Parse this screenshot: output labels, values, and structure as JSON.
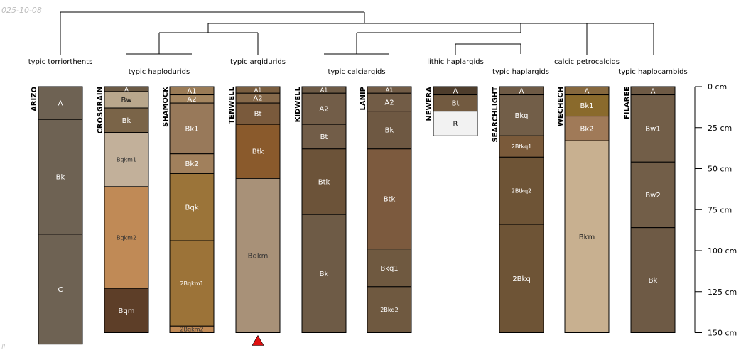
{
  "corner_text": "025-10-08",
  "footer_text": "ll",
  "colors": {
    "line": "#000000",
    "marker": "#e01010",
    "axis": "#000000"
  },
  "axis": {
    "max_depth_cm": 150,
    "ticks": [
      {
        "depth": 0,
        "label": "0 cm"
      },
      {
        "depth": 25,
        "label": "25 cm"
      },
      {
        "depth": 50,
        "label": "50 cm"
      },
      {
        "depth": 75,
        "label": "75 cm"
      },
      {
        "depth": 100,
        "label": "100 cm"
      },
      {
        "depth": 125,
        "label": "125 cm"
      },
      {
        "depth": 150,
        "label": "150 cm"
      }
    ]
  },
  "taxa": [
    {
      "label": "typic torriorthents",
      "profiles": [
        0
      ]
    },
    {
      "label": "typic haplodurids",
      "profiles": [
        1,
        2
      ]
    },
    {
      "label": "typic argidurids",
      "profiles": [
        3
      ]
    },
    {
      "label": "typic calciargids",
      "profiles": [
        4,
        5
      ]
    },
    {
      "label": "lithic haplargids",
      "profiles": [
        6
      ]
    },
    {
      "label": "typic haplargids",
      "profiles": [
        7
      ]
    },
    {
      "label": "calcic petrocalcids",
      "profiles": [
        8
      ]
    },
    {
      "label": "typic haplocambids",
      "profiles": [
        9
      ]
    }
  ],
  "profiles": [
    {
      "name": "ARIZO",
      "bottom_depth": 157,
      "horizons": [
        {
          "name": "A",
          "top": 0,
          "bottom": 20,
          "color": "#6e6253",
          "text_color": "#ffffff"
        },
        {
          "name": "Bk",
          "top": 20,
          "bottom": 90,
          "color": "#6e6253",
          "text_color": "#ffffff"
        },
        {
          "name": "C",
          "top": 90,
          "bottom": 157,
          "color": "#6e6253",
          "text_color": "#ffffff"
        }
      ]
    },
    {
      "name": "CROSGRAIN",
      "bottom_depth": 150,
      "horizons": [
        {
          "name": "A",
          "top": 0,
          "bottom": 3,
          "color": "#6b5a45",
          "text_color": "#ffffff"
        },
        {
          "name": "Bw",
          "top": 3,
          "bottom": 13,
          "color": "#b9a78c",
          "text_color": "#111111"
        },
        {
          "name": "Bk",
          "top": 13,
          "bottom": 28,
          "color": "#7a6448",
          "text_color": "#ffffff"
        },
        {
          "name": "Bqkm1",
          "top": 28,
          "bottom": 61,
          "color": "#c2b09a",
          "text_color": "#333333"
        },
        {
          "name": "Bqkm2",
          "top": 61,
          "bottom": 123,
          "color": "#c08a56",
          "text_color": "#333333"
        },
        {
          "name": "Bqm",
          "top": 123,
          "bottom": 150,
          "color": "#5d3e28",
          "text_color": "#ffffff"
        }
      ]
    },
    {
      "name": "SHAMOCK",
      "bottom_depth": 150,
      "horizons": [
        {
          "name": "A1",
          "top": 0,
          "bottom": 5,
          "color": "#9a7b56",
          "text_color": "#ffffff"
        },
        {
          "name": "A2",
          "top": 5,
          "bottom": 10,
          "color": "#a58660",
          "text_color": "#ffffff"
        },
        {
          "name": "Bk1",
          "top": 10,
          "bottom": 41,
          "color": "#98795a",
          "text_color": "#ffffff"
        },
        {
          "name": "Bk2",
          "top": 41,
          "bottom": 53,
          "color": "#a1805c",
          "text_color": "#ffffff"
        },
        {
          "name": "Bqk",
          "top": 53,
          "bottom": 94,
          "color": "#9b7439",
          "text_color": "#ffffff"
        },
        {
          "name": "2Bqkm1",
          "top": 94,
          "bottom": 146,
          "color": "#9c7338",
          "text_color": "#ffffff"
        },
        {
          "name": "2Bqkm2",
          "top": 146,
          "bottom": 150,
          "color": "#c08a56",
          "text_color": "#333333"
        }
      ]
    },
    {
      "name": "TENWELL",
      "bottom_depth": 150,
      "marker": true,
      "horizons": [
        {
          "name": "A1",
          "top": 0,
          "bottom": 4,
          "color": "#7a5e40",
          "text_color": "#ffffff"
        },
        {
          "name": "A2",
          "top": 4,
          "bottom": 10,
          "color": "#86694a",
          "text_color": "#ffffff"
        },
        {
          "name": "Bt",
          "top": 10,
          "bottom": 23,
          "color": "#7a5a3c",
          "text_color": "#ffffff"
        },
        {
          "name": "Btk",
          "top": 23,
          "bottom": 56,
          "color": "#8a5a2c",
          "text_color": "#ffffff"
        },
        {
          "name": "Bqkm",
          "top": 56,
          "bottom": 150,
          "color": "#a89178",
          "text_color": "#333333"
        }
      ]
    },
    {
      "name": "KIDWELL",
      "bottom_depth": 150,
      "horizons": [
        {
          "name": "A1",
          "top": 0,
          "bottom": 4,
          "color": "#6e5b46",
          "text_color": "#ffffff"
        },
        {
          "name": "A2",
          "top": 4,
          "bottom": 23,
          "color": "#725d48",
          "text_color": "#ffffff"
        },
        {
          "name": "Bt",
          "top": 23,
          "bottom": 38,
          "color": "#725d48",
          "text_color": "#ffffff"
        },
        {
          "name": "Btk",
          "top": 38,
          "bottom": 78,
          "color": "#6c5339",
          "text_color": "#ffffff"
        },
        {
          "name": "Bk",
          "top": 78,
          "bottom": 150,
          "color": "#6e5b46",
          "text_color": "#ffffff"
        }
      ]
    },
    {
      "name": "LANIP",
      "bottom_depth": 150,
      "horizons": [
        {
          "name": "A1",
          "top": 0,
          "bottom": 4,
          "color": "#725c46",
          "text_color": "#ffffff"
        },
        {
          "name": "A2",
          "top": 4,
          "bottom": 15,
          "color": "#725c46",
          "text_color": "#ffffff"
        },
        {
          "name": "Bk",
          "top": 15,
          "bottom": 38,
          "color": "#6e5842",
          "text_color": "#ffffff"
        },
        {
          "name": "Btk",
          "top": 38,
          "bottom": 99,
          "color": "#7c5a3e",
          "text_color": "#ffffff"
        },
        {
          "name": "Bkq1",
          "top": 99,
          "bottom": 122,
          "color": "#6f5940",
          "text_color": "#ffffff"
        },
        {
          "name": "2Bkq2",
          "top": 122,
          "bottom": 150,
          "color": "#6f5940",
          "text_color": "#ffffff"
        }
      ]
    },
    {
      "name": "NEWERA",
      "bottom_depth": 30,
      "horizons": [
        {
          "name": "A",
          "top": 0,
          "bottom": 5,
          "color": "#4e3d2c",
          "text_color": "#ffffff"
        },
        {
          "name": "Bt",
          "top": 5,
          "bottom": 15,
          "color": "#725a40",
          "text_color": "#ffffff"
        },
        {
          "name": "R",
          "top": 15,
          "bottom": 30,
          "color": "#f2f2f2",
          "text_color": "#111111"
        }
      ]
    },
    {
      "name": "SEARCHLIGHT",
      "bottom_depth": 150,
      "horizons": [
        {
          "name": "A",
          "top": 0,
          "bottom": 5,
          "color": "#6e5a45",
          "text_color": "#ffffff"
        },
        {
          "name": "Bkq",
          "top": 5,
          "bottom": 30,
          "color": "#725e48",
          "text_color": "#ffffff"
        },
        {
          "name": "2Btkq1",
          "top": 30,
          "bottom": 43,
          "color": "#7a5a3a",
          "text_color": "#ffffff"
        },
        {
          "name": "2Btkq2",
          "top": 43,
          "bottom": 84,
          "color": "#6e5436",
          "text_color": "#ffffff"
        },
        {
          "name": "2Bkq",
          "top": 84,
          "bottom": 150,
          "color": "#6e5436",
          "text_color": "#ffffff"
        }
      ]
    },
    {
      "name": "WECHECH",
      "bottom_depth": 150,
      "horizons": [
        {
          "name": "A",
          "top": 0,
          "bottom": 5,
          "color": "#86683e",
          "text_color": "#ffffff"
        },
        {
          "name": "Bk1",
          "top": 5,
          "bottom": 18,
          "color": "#8a6a2c",
          "text_color": "#ffffff"
        },
        {
          "name": "Bk2",
          "top": 18,
          "bottom": 33,
          "color": "#a07a58",
          "text_color": "#ffffff"
        },
        {
          "name": "Bkm",
          "top": 33,
          "bottom": 150,
          "color": "#c8b090",
          "text_color": "#222222"
        }
      ]
    },
    {
      "name": "FILAREE",
      "bottom_depth": 150,
      "horizons": [
        {
          "name": "A",
          "top": 0,
          "bottom": 5,
          "color": "#6e5a45",
          "text_color": "#ffffff"
        },
        {
          "name": "Bw1",
          "top": 5,
          "bottom": 46,
          "color": "#725e48",
          "text_color": "#ffffff"
        },
        {
          "name": "Bw2",
          "top": 46,
          "bottom": 86,
          "color": "#725e48",
          "text_color": "#ffffff"
        },
        {
          "name": "Bk",
          "top": 86,
          "bottom": 150,
          "color": "#6e5a45",
          "text_color": "#ffffff"
        }
      ]
    }
  ]
}
